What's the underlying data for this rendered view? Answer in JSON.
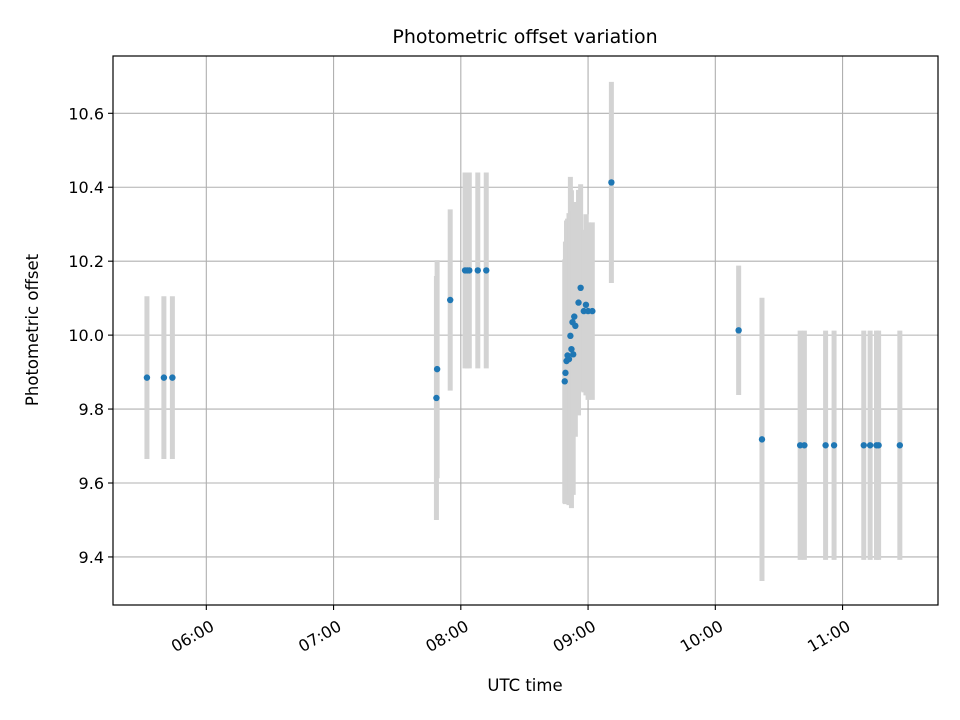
{
  "chart_data": {
    "type": "scatter",
    "title": "Photometric offset variation",
    "xlabel": "UTC time",
    "ylabel": "Photometric offset",
    "xlim": [
      "05:16",
      "11:45"
    ],
    "ylim": [
      9.27,
      10.755
    ],
    "x_ticks": [
      "06:00",
      "07:00",
      "08:00",
      "09:00",
      "10:00",
      "11:00"
    ],
    "y_ticks": [
      "9.4",
      "9.6",
      "9.8",
      "10.0",
      "10.2",
      "10.4",
      "10.6"
    ],
    "grid": true,
    "marker_color": "#1f77b4",
    "errorbar_color": "#d3d3d3",
    "points": [
      {
        "time": "05:32:00",
        "y": 9.885,
        "err": 0.22
      },
      {
        "time": "05:40:00",
        "y": 9.885,
        "err": 0.22
      },
      {
        "time": "05:44:00",
        "y": 9.885,
        "err": 0.22
      },
      {
        "time": "07:48:30",
        "y": 9.83,
        "err": 0.33
      },
      {
        "time": "07:48:50",
        "y": 9.908,
        "err": 0.295
      },
      {
        "time": "07:55:00",
        "y": 10.095,
        "err": 0.245
      },
      {
        "time": "08:02:00",
        "y": 10.175,
        "err": 0.265
      },
      {
        "time": "08:03:00",
        "y": 10.175,
        "err": 0.265
      },
      {
        "time": "08:04:00",
        "y": 10.175,
        "err": 0.265
      },
      {
        "time": "08:08:00",
        "y": 10.175,
        "err": 0.265
      },
      {
        "time": "08:12:00",
        "y": 10.175,
        "err": 0.265
      },
      {
        "time": "08:49:00",
        "y": 9.875,
        "err": 0.33
      },
      {
        "time": "08:49:20",
        "y": 9.898,
        "err": 0.355
      },
      {
        "time": "08:49:50",
        "y": 9.93,
        "err": 0.38
      },
      {
        "time": "08:50:20",
        "y": 9.945,
        "err": 0.37
      },
      {
        "time": "08:51:00",
        "y": 9.935,
        "err": 0.395
      },
      {
        "time": "08:51:40",
        "y": 9.998,
        "err": 0.43
      },
      {
        "time": "08:52:10",
        "y": 9.962,
        "err": 0.43
      },
      {
        "time": "08:52:40",
        "y": 10.035,
        "err": 0.3
      },
      {
        "time": "08:53:00",
        "y": 9.948,
        "err": 0.38
      },
      {
        "time": "08:53:30",
        "y": 10.05,
        "err": 0.31
      },
      {
        "time": "08:54:00",
        "y": 10.025,
        "err": 0.3
      },
      {
        "time": "08:55:30",
        "y": 10.088,
        "err": 0.305
      },
      {
        "time": "08:56:30",
        "y": 10.128,
        "err": 0.28
      },
      {
        "time": "08:58:00",
        "y": 10.065,
        "err": 0.22
      },
      {
        "time": "08:59:00",
        "y": 10.082,
        "err": 0.245
      },
      {
        "time": "09:00:00",
        "y": 10.065,
        "err": 0.24
      },
      {
        "time": "09:02:00",
        "y": 10.065,
        "err": 0.24
      },
      {
        "time": "09:11:00",
        "y": 10.413,
        "err": 0.272
      },
      {
        "time": "10:11:00",
        "y": 10.013,
        "err": 0.175
      },
      {
        "time": "10:22:00",
        "y": 9.718,
        "err": 0.383
      },
      {
        "time": "10:40:00",
        "y": 9.702,
        "err": 0.31
      },
      {
        "time": "10:42:00",
        "y": 9.702,
        "err": 0.31
      },
      {
        "time": "10:52:00",
        "y": 9.702,
        "err": 0.31
      },
      {
        "time": "10:56:00",
        "y": 9.702,
        "err": 0.31
      },
      {
        "time": "11:10:00",
        "y": 9.702,
        "err": 0.31
      },
      {
        "time": "11:13:00",
        "y": 9.702,
        "err": 0.31
      },
      {
        "time": "11:16:00",
        "y": 9.702,
        "err": 0.31
      },
      {
        "time": "11:17:00",
        "y": 9.702,
        "err": 0.31
      },
      {
        "time": "11:27:00",
        "y": 9.702,
        "err": 0.31
      }
    ]
  }
}
